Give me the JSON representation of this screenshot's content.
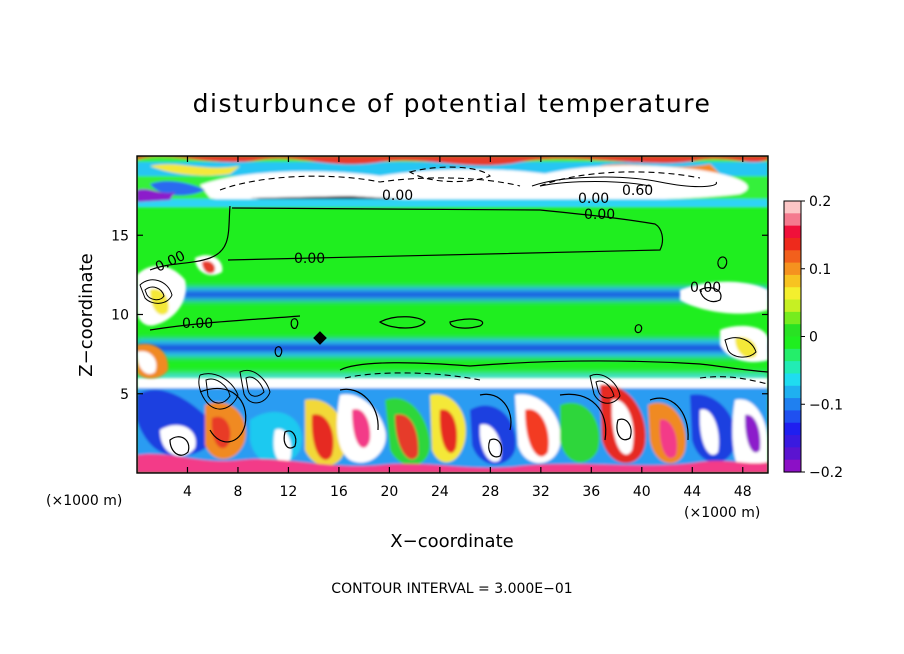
{
  "chart_data": {
    "type": "heatmap",
    "title": "disturbunce of potential temperature",
    "xlabel": "X−coordinate",
    "ylabel": "Z−coordinate",
    "x_unit": "(×1000 m)",
    "x_unit_right": "(×1000 m)",
    "xlim": [
      0,
      50
    ],
    "ylim": [
      0,
      20
    ],
    "xticks": [
      4,
      8,
      12,
      16,
      20,
      24,
      28,
      32,
      36,
      40,
      44,
      48
    ],
    "xtick_labels": [
      "4",
      "8",
      "12",
      "16",
      "20",
      "24",
      "28",
      "32",
      "36",
      "40",
      "44",
      "48"
    ],
    "yticks": [
      5,
      10,
      15
    ],
    "ytick_labels": [
      "5",
      "10",
      "15"
    ],
    "colorbar": {
      "range": [
        -0.2,
        0.2
      ],
      "ticks": [
        0.2,
        0.1,
        0,
        -0.1,
        -0.2
      ],
      "tick_labels": [
        "0.2",
        "0.1",
        "0",
        "−0.1",
        "−0.2"
      ]
    },
    "contour_labels": [
      "0.00",
      "0.00",
      "0.00",
      "0.00",
      "0.00",
      "0.00",
      "0.00",
      "0.60"
    ],
    "caption": "CONTOUR INTERVAL = 3.000E−01"
  }
}
